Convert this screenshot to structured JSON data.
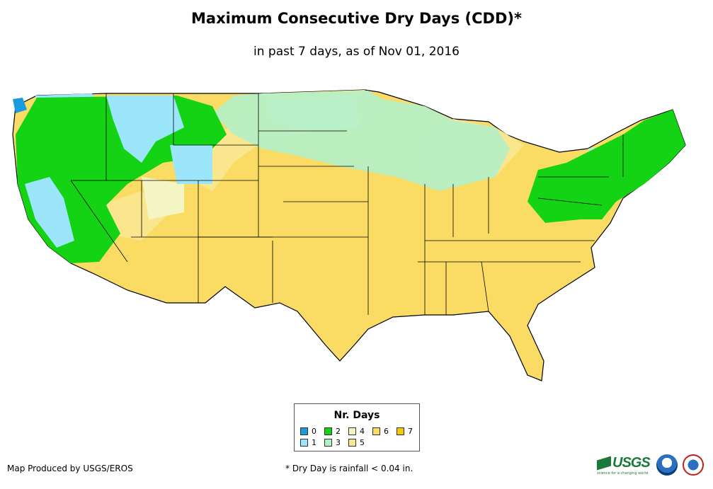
{
  "title": "Maximum Consecutive Dry Days (CDD)*",
  "subtitle": "in past 7 days, as of Nov 01, 2016",
  "legend": {
    "title": "Nr. Days",
    "items": [
      {
        "label": "0",
        "color": "#1a9be0"
      },
      {
        "label": "1",
        "color": "#9be6fa"
      },
      {
        "label": "2",
        "color": "#14d214"
      },
      {
        "label": "3",
        "color": "#b4f0c8"
      },
      {
        "label": "4",
        "color": "#f5f5c3"
      },
      {
        "label": "5",
        "color": "#fae68c"
      },
      {
        "label": "6",
        "color": "#fadc64"
      },
      {
        "label": "7",
        "color": "#f5c800"
      }
    ]
  },
  "footer": {
    "credit": "Map Produced by USGS/EROS",
    "note": "* Dry Day is rainfall < 0.04 in."
  },
  "logos": {
    "usgs": "USGS",
    "usgs_tagline": "science for a changing world",
    "noaa": "noaa-logo",
    "nws": "nws-logo"
  }
}
